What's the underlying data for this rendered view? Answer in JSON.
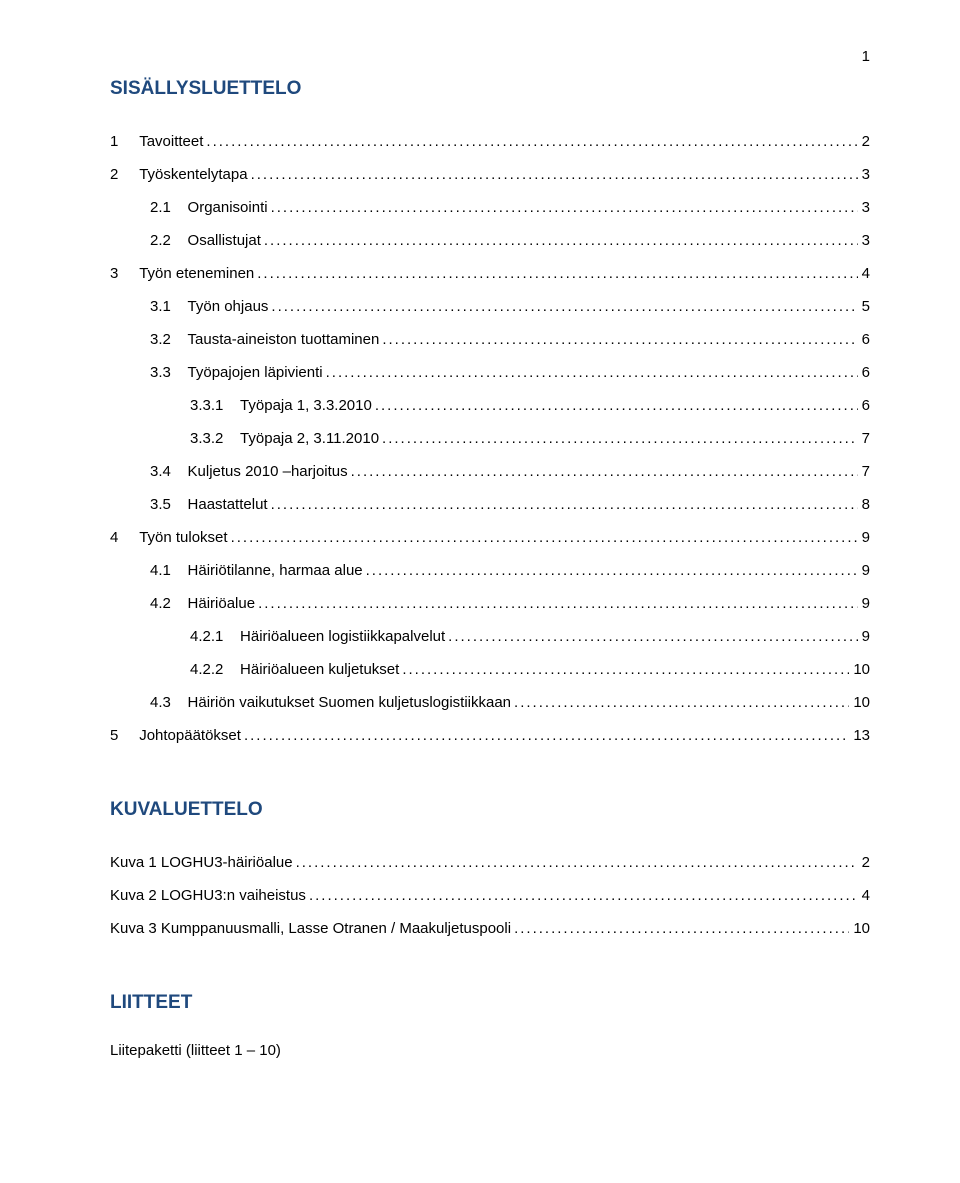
{
  "page_number_top": "1",
  "sisallys_heading": "SISÄLLYSLUETTELO",
  "toc": [
    {
      "level": 0,
      "num": "1",
      "label": "Tavoitteet",
      "page": "2"
    },
    {
      "level": 0,
      "num": "2",
      "label": "Työskentelytapa",
      "page": "3"
    },
    {
      "level": 1,
      "num": "2.1",
      "label": "Organisointi",
      "page": "3"
    },
    {
      "level": 1,
      "num": "2.2",
      "label": "Osallistujat",
      "page": "3"
    },
    {
      "level": 0,
      "num": "3",
      "label": "Työn eteneminen",
      "page": "4"
    },
    {
      "level": 1,
      "num": "3.1",
      "label": "Työn ohjaus",
      "page": "5"
    },
    {
      "level": 1,
      "num": "3.2",
      "label": "Tausta-aineiston tuottaminen",
      "page": "6"
    },
    {
      "level": 1,
      "num": "3.3",
      "label": "Työpajojen läpivienti",
      "page": "6"
    },
    {
      "level": 2,
      "num": "3.3.1",
      "label": "Työpaja 1, 3.3.2010",
      "page": "6"
    },
    {
      "level": 2,
      "num": "3.3.2",
      "label": "Työpaja 2, 3.11.2010",
      "page": "7"
    },
    {
      "level": 1,
      "num": "3.4",
      "label": "Kuljetus 2010 –harjoitus",
      "page": "7"
    },
    {
      "level": 1,
      "num": "3.5",
      "label": "Haastattelut",
      "page": "8"
    },
    {
      "level": 0,
      "num": "4",
      "label": "Työn tulokset",
      "page": "9"
    },
    {
      "level": 1,
      "num": "4.1",
      "label": "Häiriötilanne, harmaa alue",
      "page": "9"
    },
    {
      "level": 1,
      "num": "4.2",
      "label": "Häiriöalue",
      "page": "9"
    },
    {
      "level": 2,
      "num": "4.2.1",
      "label": "Häiriöalueen logistiikkapalvelut",
      "page": "9"
    },
    {
      "level": 2,
      "num": "4.2.2",
      "label": "Häiriöalueen kuljetukset",
      "page": "10"
    },
    {
      "level": 1,
      "num": "4.3",
      "label": "Häiriön vaikutukset Suomen kuljetuslogistiikkaan",
      "page": "10"
    },
    {
      "level": 0,
      "num": "5",
      "label": "Johtopäätökset",
      "page": "13"
    }
  ],
  "kuvaluettelo_heading": "KUVALUETTELO",
  "kuvat": [
    {
      "label": "Kuva 1 LOGHU3-häiriöalue",
      "page": "2"
    },
    {
      "label": "Kuva 2 LOGHU3:n vaiheistus",
      "page": "4"
    },
    {
      "label": "Kuva 3 Kumppanuusmalli, Lasse Otranen / Maakuljetuspooli",
      "page": "10"
    }
  ],
  "liitteet_heading": "LIITTEET",
  "liitteet_body": "Liitepaketti (liitteet 1 – 10)",
  "colors": {
    "heading": "#1f497d",
    "text": "#000000",
    "background": "#ffffff"
  },
  "fonts": {
    "body_size_pt": 11,
    "heading_size_pt": 14,
    "family": "Verdana"
  }
}
